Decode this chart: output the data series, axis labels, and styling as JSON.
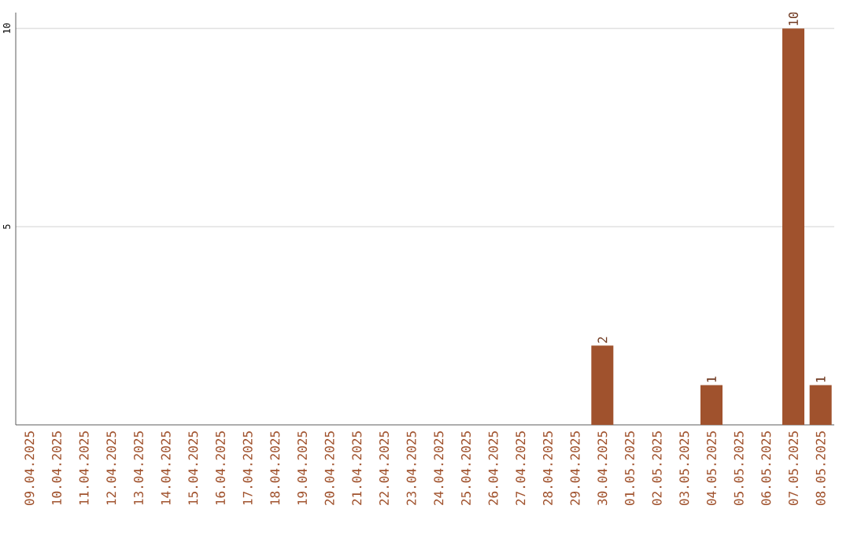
{
  "chart_data": {
    "type": "bar",
    "categories": [
      "09.04.2025",
      "10.04.2025",
      "11.04.2025",
      "12.04.2025",
      "13.04.2025",
      "14.04.2025",
      "15.04.2025",
      "16.04.2025",
      "17.04.2025",
      "18.04.2025",
      "19.04.2025",
      "20.04.2025",
      "21.04.2025",
      "22.04.2025",
      "23.04.2025",
      "24.04.2025",
      "25.04.2025",
      "26.04.2025",
      "27.04.2025",
      "28.04.2025",
      "29.04.2025",
      "30.04.2025",
      "01.05.2025",
      "02.05.2025",
      "03.05.2025",
      "04.05.2025",
      "05.05.2025",
      "06.05.2025",
      "07.05.2025",
      "08.05.2025"
    ],
    "values": [
      0,
      0,
      0,
      0,
      0,
      0,
      0,
      0,
      0,
      0,
      0,
      0,
      0,
      0,
      0,
      0,
      0,
      0,
      0,
      0,
      0,
      2,
      0,
      0,
      0,
      1,
      0,
      0,
      10,
      1
    ],
    "value_labels": [
      null,
      null,
      null,
      null,
      null,
      null,
      null,
      null,
      null,
      null,
      null,
      null,
      null,
      null,
      null,
      null,
      null,
      null,
      null,
      null,
      null,
      "2",
      null,
      null,
      null,
      "1",
      null,
      null,
      "10",
      "1"
    ],
    "color": "#a0522d",
    "ylim": [
      0,
      10.4
    ],
    "yticks": [
      5,
      10
    ],
    "grid": "y"
  }
}
